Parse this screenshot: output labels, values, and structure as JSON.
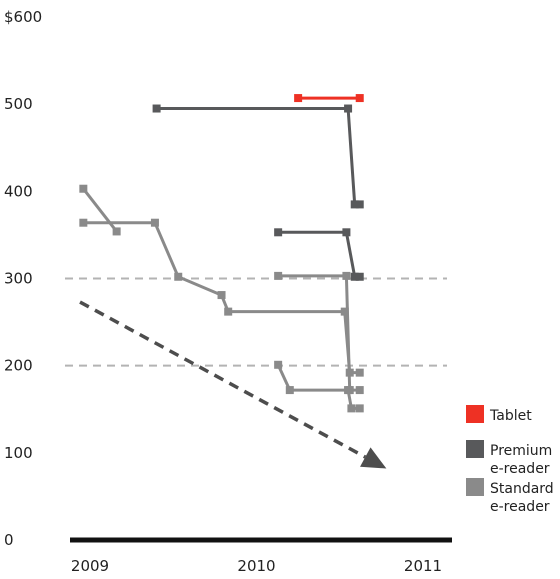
{
  "chart_data": {
    "type": "line",
    "title": "",
    "xlabel": "",
    "ylabel": "",
    "ylim": [
      0,
      600
    ],
    "xlim": [
      2009.0,
      2011.0
    ],
    "y_ticks": [
      {
        "value": 600,
        "label": "$600"
      },
      {
        "value": 500,
        "label": "500"
      },
      {
        "value": 400,
        "label": "400"
      },
      {
        "value": 300,
        "label": "300"
      },
      {
        "value": 200,
        "label": "200"
      },
      {
        "value": 100,
        "label": "100"
      },
      {
        "value": 0,
        "label": "0"
      }
    ],
    "x_ticks": [
      {
        "value": 2009.0,
        "label": "2009"
      },
      {
        "value": 2010.0,
        "label": "2010"
      },
      {
        "value": 2011.0,
        "label": "2011"
      }
    ],
    "reference_lines": [
      {
        "y": 300,
        "style": "dashed"
      },
      {
        "y": 200,
        "style": "dashed"
      }
    ],
    "trend_arrow": {
      "from": {
        "x": 2008.94,
        "y": 273
      },
      "to": {
        "x": 2010.78,
        "y": 82
      }
    },
    "legend": {
      "placement": "bottom-right",
      "items": [
        {
          "key": "tablet",
          "label": "Tablet",
          "color": "#ee3124"
        },
        {
          "key": "premium",
          "label": "Premium e-reader",
          "color": "#58595b"
        },
        {
          "key": "standard",
          "label": "Standard e-reader",
          "color": "#8a8a8a"
        }
      ]
    },
    "series": [
      {
        "category": "tablet",
        "points": [
          {
            "x": 2010.25,
            "y": 507
          },
          {
            "x": 2010.62,
            "y": 507
          }
        ]
      },
      {
        "category": "premium",
        "points": [
          {
            "x": 2009.4,
            "y": 495
          },
          {
            "x": 2010.55,
            "y": 495
          },
          {
            "x": 2010.59,
            "y": 385
          },
          {
            "x": 2010.62,
            "y": 385
          }
        ]
      },
      {
        "category": "premium",
        "points": [
          {
            "x": 2010.13,
            "y": 353
          },
          {
            "x": 2010.54,
            "y": 353
          },
          {
            "x": 2010.59,
            "y": 302
          },
          {
            "x": 2010.62,
            "y": 302
          }
        ]
      },
      {
        "category": "standard",
        "points": [
          {
            "x": 2008.96,
            "y": 403
          },
          {
            "x": 2009.16,
            "y": 354
          }
        ]
      },
      {
        "category": "standard",
        "points": [
          {
            "x": 2008.96,
            "y": 364
          },
          {
            "x": 2009.39,
            "y": 364
          },
          {
            "x": 2009.53,
            "y": 302
          },
          {
            "x": 2009.79,
            "y": 281
          },
          {
            "x": 2009.83,
            "y": 262
          },
          {
            "x": 2010.53,
            "y": 262
          },
          {
            "x": 2010.56,
            "y": 192
          },
          {
            "x": 2010.62,
            "y": 192
          }
        ]
      },
      {
        "category": "standard",
        "points": [
          {
            "x": 2010.13,
            "y": 303
          },
          {
            "x": 2010.54,
            "y": 303
          },
          {
            "x": 2010.56,
            "y": 172
          },
          {
            "x": 2010.62,
            "y": 172
          }
        ]
      },
      {
        "category": "standard",
        "points": [
          {
            "x": 2010.13,
            "y": 201
          },
          {
            "x": 2010.2,
            "y": 172
          },
          {
            "x": 2010.55,
            "y": 172
          },
          {
            "x": 2010.57,
            "y": 151
          },
          {
            "x": 2010.62,
            "y": 151
          }
        ]
      }
    ]
  }
}
